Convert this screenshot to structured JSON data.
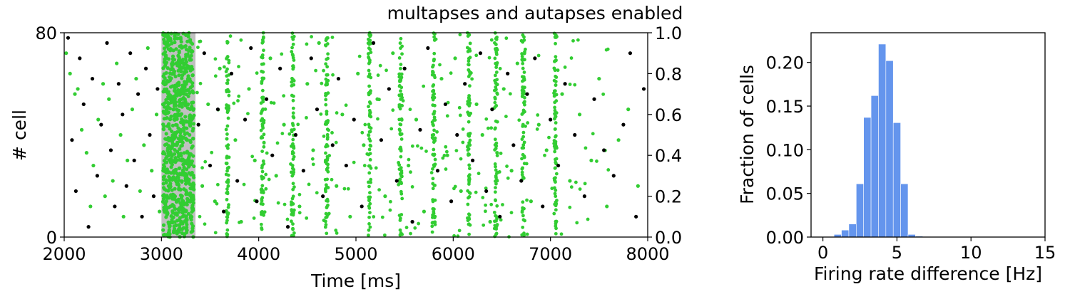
{
  "colors": {
    "excitatory": "#32cd32",
    "inhibitory": "#000000",
    "stimulus_shade": "#c0c0c0",
    "histogram": "#6495ed"
  },
  "chart_data": [
    {
      "type": "scatter",
      "title": "multapses and autapses enabled",
      "xlabel": "Time [ms]",
      "ylabel": "# cell",
      "xlim": [
        2000,
        8000
      ],
      "ylim": [
        0,
        80
      ],
      "y2lim": [
        0.0,
        1.0
      ],
      "x_ticks": [
        "2000",
        "3000",
        "4000",
        "5000",
        "6000",
        "7000",
        "8000"
      ],
      "y_ticks": [
        "0",
        "80"
      ],
      "y2_ticks": [
        "0.0",
        "0.2",
        "0.4",
        "0.6",
        "0.8",
        "1.0"
      ],
      "stimulus_window": [
        3000,
        3350
      ],
      "burst_times": [
        3680,
        4040,
        4350,
        4700,
        5140,
        5460,
        5800,
        6160,
        6440,
        6720,
        7050
      ],
      "series": [
        {
          "points": [
            [
              2020,
              72
            ],
            [
              2060,
              64
            ],
            [
              2110,
              56
            ],
            [
              2140,
              58
            ],
            [
              2180,
              42
            ],
            [
              2230,
              33
            ],
            [
              2270,
              12
            ],
            [
              2300,
              28
            ],
            [
              2350,
              46
            ],
            [
              2400,
              60
            ],
            [
              2420,
              16
            ],
            [
              2460,
              54
            ],
            [
              2500,
              22
            ],
            [
              2540,
              68
            ],
            [
              2580,
              40
            ],
            [
              2610,
              8
            ],
            [
              2650,
              30
            ],
            [
              2700,
              50
            ],
            [
              2740,
              62
            ],
            [
              2780,
              18
            ],
            [
              2820,
              36
            ],
            [
              2860,
              74
            ],
            [
              2900,
              26
            ],
            [
              2950,
              48
            ],
            [
              2980,
              10
            ],
            [
              3420,
              20
            ],
            [
              3480,
              52
            ],
            [
              3550,
              14
            ],
            [
              3600,
              66
            ],
            [
              3760,
              38
            ],
            [
              3820,
              6
            ],
            [
              3900,
              58
            ],
            [
              3960,
              30
            ],
            [
              4120,
              70
            ],
            [
              4180,
              24
            ],
            [
              4260,
              44
            ],
            [
              4420,
              12
            ],
            [
              4500,
              60
            ],
            [
              4560,
              34
            ],
            [
              4620,
              76
            ],
            [
              4800,
              20
            ],
            [
              4860,
              48
            ],
            [
              4940,
              8
            ],
            [
              5020,
              64
            ],
            [
              5080,
              36
            ],
            [
              5220,
              54
            ],
            [
              5300,
              16
            ],
            [
              5380,
              72
            ],
            [
              5540,
              28
            ],
            [
              5620,
              46
            ],
            [
              5700,
              10
            ],
            [
              5880,
              62
            ],
            [
              5940,
              32
            ],
            [
              6020,
              70
            ],
            [
              6080,
              18
            ],
            [
              6240,
              52
            ],
            [
              6300,
              40
            ],
            [
              6380,
              6
            ],
            [
              6520,
              58
            ],
            [
              6600,
              26
            ],
            [
              6660,
              68
            ],
            [
              6800,
              14
            ],
            [
              6880,
              44
            ],
            [
              6960,
              34
            ],
            [
              7120,
              56
            ],
            [
              7200,
              22
            ],
            [
              7300,
              48
            ],
            [
              7420,
              30
            ],
            [
              7500,
              62
            ],
            [
              7580,
              12
            ],
            [
              7700,
              38
            ],
            [
              7800,
              50
            ],
            [
              7900,
              20
            ]
          ]
        },
        {
          "points": [
            [
              2040,
              78
            ],
            [
              2080,
              38
            ],
            [
              2120,
              18
            ],
            [
              2160,
              70
            ],
            [
              2200,
              52
            ],
            [
              2250,
              4
            ],
            [
              2290,
              62
            ],
            [
              2340,
              24
            ],
            [
              2380,
              44
            ],
            [
              2440,
              76
            ],
            [
              2480,
              34
            ],
            [
              2520,
              12
            ],
            [
              2560,
              60
            ],
            [
              2600,
              48
            ],
            [
              2640,
              20
            ],
            [
              2680,
              72
            ],
            [
              2720,
              30
            ],
            [
              2760,
              56
            ],
            [
              2800,
              8
            ],
            [
              2840,
              66
            ],
            [
              2880,
              40
            ],
            [
              2920,
              16
            ],
            [
              2960,
              58
            ],
            [
              3380,
              44
            ],
            [
              3440,
              72
            ],
            [
              3500,
              28
            ],
            [
              3580,
              50
            ],
            [
              3640,
              10
            ],
            [
              3720,
              64
            ],
            [
              3780,
              22
            ],
            [
              3860,
              46
            ],
            [
              3920,
              74
            ],
            [
              3980,
              14
            ],
            [
              4080,
              54
            ],
            [
              4140,
              32
            ],
            [
              4220,
              66
            ],
            [
              4300,
              4
            ],
            [
              4380,
              40
            ],
            [
              4460,
              26
            ],
            [
              4540,
              70
            ],
            [
              4600,
              50
            ],
            [
              4660,
              16
            ],
            [
              4760,
              36
            ],
            [
              4820,
              62
            ],
            [
              4900,
              28
            ],
            [
              4980,
              46
            ],
            [
              5060,
              12
            ],
            [
              5180,
              76
            ],
            [
              5260,
              38
            ],
            [
              5340,
              58
            ],
            [
              5420,
              22
            ],
            [
              5500,
              66
            ],
            [
              5580,
              6
            ],
            [
              5660,
              42
            ],
            [
              5740,
              74
            ],
            [
              5840,
              26
            ],
            [
              5920,
              52
            ],
            [
              5980,
              14
            ],
            [
              6040,
              40
            ],
            [
              6120,
              60
            ],
            [
              6200,
              30
            ],
            [
              6280,
              72
            ],
            [
              6340,
              18
            ],
            [
              6400,
              50
            ],
            [
              6480,
              8
            ],
            [
              6560,
              64
            ],
            [
              6620,
              36
            ],
            [
              6700,
              22
            ],
            [
              6760,
              56
            ],
            [
              6840,
              70
            ],
            [
              6920,
              12
            ],
            [
              7000,
              46
            ],
            [
              7080,
              28
            ],
            [
              7150,
              60
            ],
            [
              7250,
              40
            ],
            [
              7350,
              16
            ],
            [
              7450,
              54
            ],
            [
              7550,
              34
            ],
            [
              7650,
              24
            ],
            [
              7750,
              44
            ],
            [
              7820,
              72
            ],
            [
              7880,
              8
            ],
            [
              7960,
              58
            ]
          ]
        }
      ]
    },
    {
      "type": "bar",
      "xlabel": "Firing rate difference [Hz]",
      "ylabel": "Fraction of cells",
      "xlim": [
        -0.8,
        15
      ],
      "ylim": [
        0,
        0.234
      ],
      "x_ticks": [
        "0",
        "5",
        "10",
        "15"
      ],
      "y_ticks": [
        "0.00",
        "0.05",
        "0.10",
        "0.15",
        "0.20"
      ],
      "bin_edges": [
        0.75,
        1.25,
        1.75,
        2.25,
        2.75,
        3.25,
        3.75,
        4.25,
        4.75,
        5.25,
        5.75,
        6.25,
        6.75,
        7.25
      ],
      "values": [
        0.003,
        0.008,
        0.015,
        0.061,
        0.137,
        0.162,
        0.221,
        0.202,
        0.131,
        0.061,
        0.003,
        0.001,
        0.0005
      ]
    }
  ]
}
